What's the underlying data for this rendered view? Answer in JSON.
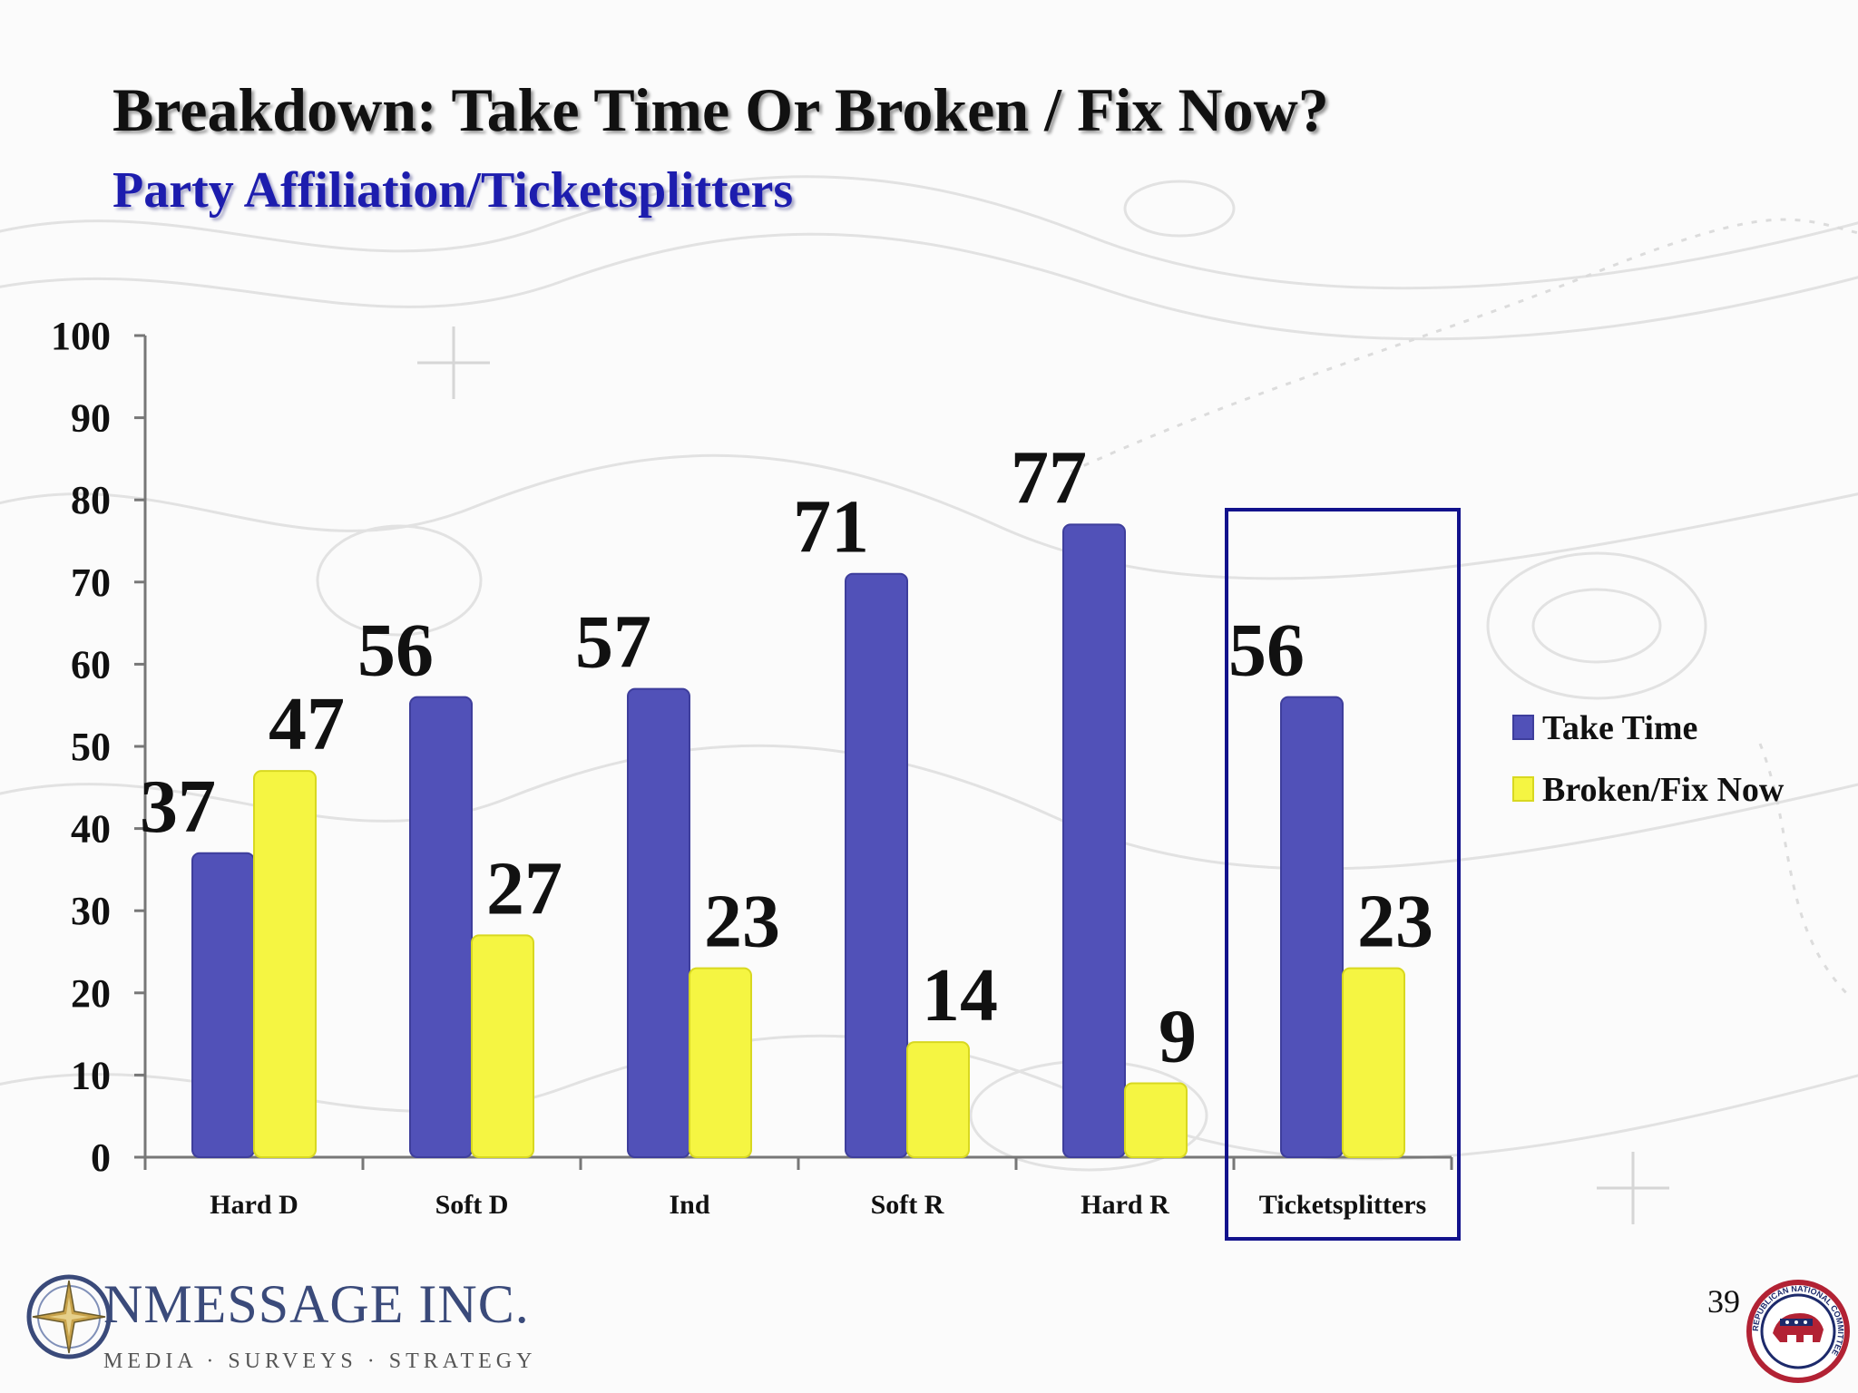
{
  "slide": {
    "title": "Breakdown: Take Time Or Broken / Fix Now?",
    "subtitle": "Party Affiliation/Ticketsplitters",
    "page_number": "39"
  },
  "colors": {
    "take_time": "#5151b8",
    "broken_fix_now": "#f5f542",
    "highlight_box": "#12128c",
    "subtitle": "#1d1dae"
  },
  "chart_data": {
    "type": "bar",
    "title": "",
    "xlabel": "",
    "ylabel": "",
    "ylim": [
      0,
      100
    ],
    "yticks": [
      0,
      10,
      20,
      30,
      40,
      50,
      60,
      70,
      80,
      90,
      100
    ],
    "categories": [
      "Hard D",
      "Soft D",
      "Ind",
      "Soft R",
      "Hard R",
      "Ticketsplitters"
    ],
    "series": [
      {
        "name": "Take Time",
        "values": [
          37,
          56,
          57,
          71,
          77,
          56
        ]
      },
      {
        "name": "Broken/Fix Now",
        "values": [
          47,
          27,
          23,
          14,
          9,
          23
        ]
      }
    ],
    "highlighted_category": "Ticketsplitters",
    "legend_position": "right",
    "grid": false,
    "data_labels": true
  },
  "branding": {
    "company_logo_text": "NMESSAGE INC.",
    "company_tagline": "MEDIA · SURVEYS · STRATEGY",
    "compass_icon": "compass-icon",
    "seal_icon": "rnc-seal-icon",
    "seal_text": "REPUBLICAN NATIONAL COMMITTEE"
  }
}
